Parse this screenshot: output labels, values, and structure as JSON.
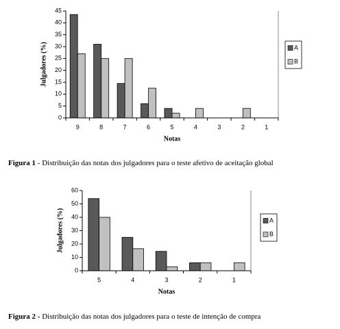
{
  "chart_data": [
    {
      "type": "bar",
      "x_label": "Notas",
      "y_label": "Julgadores (%)",
      "categories": [
        "9",
        "8",
        "7",
        "6",
        "5",
        "4",
        "3",
        "2",
        "1"
      ],
      "series": [
        {
          "name": "A",
          "color": "#595959",
          "values": [
            43.5,
            31,
            14.5,
            6,
            4,
            0,
            0,
            0,
            0
          ]
        },
        {
          "name": "B",
          "color": "#c0c0c0",
          "values": [
            27,
            25,
            25,
            12.5,
            2,
            4,
            0,
            4,
            0
          ]
        }
      ],
      "ylim": [
        0,
        45
      ],
      "yticks": [
        0,
        5,
        10,
        15,
        20,
        25,
        30,
        35,
        40,
        45
      ],
      "legend": "right",
      "caption_label": "Figura 1",
      "caption": " - Distribuição das notas dos julgadores para o teste afetivo de aceitação global"
    },
    {
      "type": "bar",
      "x_label": "Notas",
      "y_label": "Julgadores (%)",
      "categories": [
        "5",
        "4",
        "3",
        "2",
        "1"
      ],
      "series": [
        {
          "name": "A",
          "color": "#595959",
          "values": [
            54,
            25,
            14.5,
            6,
            0
          ]
        },
        {
          "name": "B",
          "color": "#c0c0c0",
          "values": [
            40,
            16.5,
            3,
            6,
            6
          ]
        }
      ],
      "ylim": [
        0,
        60
      ],
      "yticks": [
        0,
        10,
        20,
        30,
        40,
        50,
        60
      ],
      "legend": "right",
      "caption_label": "Figura 2",
      "caption": " - Distribuição das notas dos julgadores para o teste de intenção de compra"
    }
  ]
}
